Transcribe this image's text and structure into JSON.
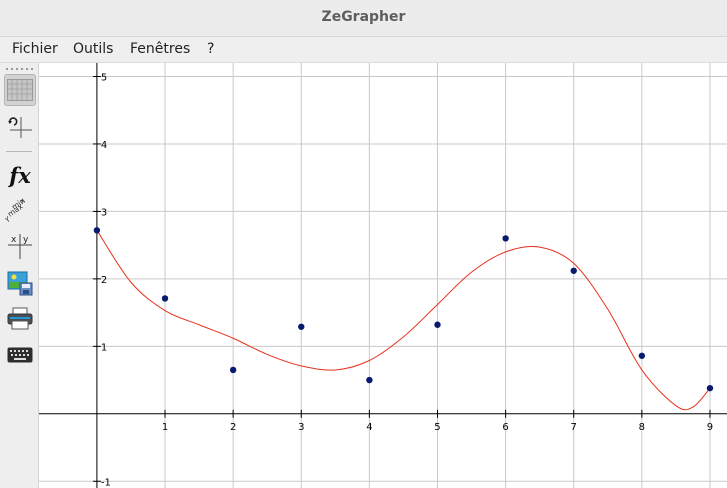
{
  "window": {
    "title": "ZeGrapher"
  },
  "menu": {
    "items": [
      "Fichier",
      "Outils",
      "Fenêtres",
      "?"
    ]
  },
  "toolbar": {
    "items": [
      {
        "icon": "grid-icon",
        "active": true
      },
      {
        "icon": "axes-reset-icon"
      },
      {
        "icon": "fx-icon",
        "label": "fx"
      },
      {
        "icon": "xy-min-max-icon"
      },
      {
        "icon": "xy-table-icon",
        "label_x": "x",
        "label_y": "y"
      },
      {
        "icon": "save-image-icon"
      },
      {
        "icon": "print-icon"
      },
      {
        "icon": "keyboard-icon"
      }
    ]
  },
  "chart_data": {
    "type": "scatter",
    "x_ticks": [
      1,
      2,
      3,
      4,
      5,
      6,
      7,
      8,
      9
    ],
    "y_ticks": [
      -1,
      1,
      2,
      3,
      4,
      5
    ],
    "xlim": [
      -0.85,
      9.25
    ],
    "ylim": [
      -1.1,
      5.2
    ],
    "grid": true,
    "points": {
      "color": "#0a1a6e",
      "x": [
        0,
        1,
        2,
        3,
        4,
        5,
        6,
        7,
        8,
        9
      ],
      "y": [
        2.72,
        1.71,
        0.65,
        1.29,
        0.5,
        1.32,
        2.6,
        2.12,
        0.86,
        0.38
      ]
    },
    "curve": {
      "color": "#e8301c",
      "x": [
        0,
        0.5,
        1,
        1.5,
        2,
        2.5,
        3,
        3.5,
        4,
        4.5,
        5,
        5.5,
        6,
        6.5,
        7,
        7.5,
        8,
        8.5,
        8.75,
        9
      ],
      "y": [
        2.72,
        1.95,
        1.53,
        1.32,
        1.12,
        0.88,
        0.71,
        0.65,
        0.79,
        1.14,
        1.62,
        2.1,
        2.4,
        2.47,
        2.23,
        1.55,
        0.65,
        0.12,
        0.1,
        0.38
      ]
    }
  }
}
